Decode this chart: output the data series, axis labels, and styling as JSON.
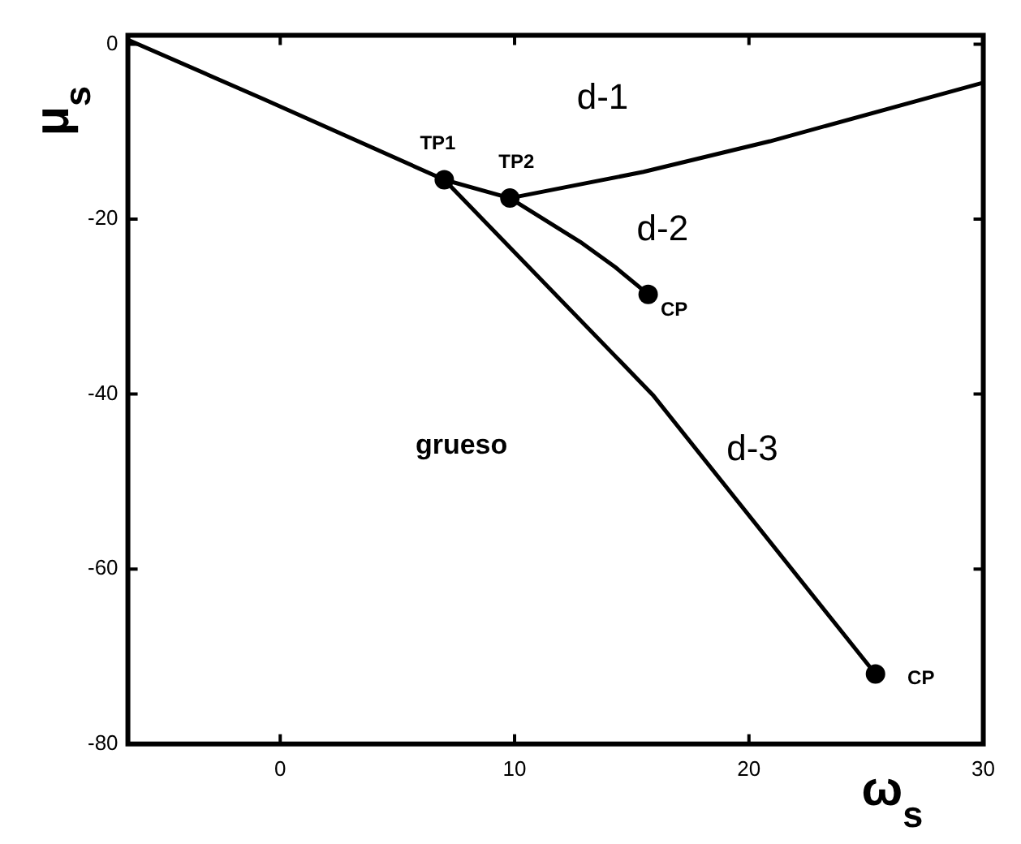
{
  "chart_data": {
    "type": "line",
    "xlabel": "ω$_{s}$",
    "ylabel": "μ$_{s}$",
    "xlim": [
      -6.5,
      30
    ],
    "ylim": [
      -80,
      1
    ],
    "xticks": [
      0,
      10,
      20,
      30
    ],
    "yticks": [
      0,
      -20,
      -40,
      -60,
      -80
    ],
    "grid": false,
    "legend": false,
    "series": [
      {
        "color": "#000000",
        "marker": "none",
        "x": [
          -6.5,
          -0.7,
          7
        ],
        "values": [
          0.5,
          -6.3,
          -15.5
        ]
      },
      {
        "color": "#000000",
        "marker": "none",
        "x": [
          7,
          9.8,
          15.5,
          20.9,
          30
        ],
        "values": [
          -15.5,
          -17.6,
          -14.6,
          -11.1,
          -4.4
        ]
      },
      {
        "color": "#000000",
        "marker": "none",
        "x": [
          9.8,
          12.8,
          14.3,
          15.7
        ],
        "values": [
          -17.6,
          -22.6,
          -25.5,
          -28.6
        ]
      },
      {
        "color": "#000000",
        "marker": "none",
        "x": [
          7,
          15.9,
          25.4
        ],
        "values": [
          -15.5,
          -40.1,
          -72
        ]
      },
      {
        "type": "scatter",
        "color": "#000000",
        "marker": "circle",
        "x": [
          7,
          9.8,
          15.7,
          25.4
        ],
        "values": [
          -15.5,
          -17.6,
          -28.6,
          -72
        ]
      }
    ],
    "annotations": [
      {
        "text": "TP1",
        "x": 7,
        "y": -15.5
      },
      {
        "text": "TP2",
        "x": 9.8,
        "y": -17.6
      },
      {
        "text": "CP",
        "x": 15.7,
        "y": -28.6
      },
      {
        "text": "CP",
        "x": 25.4,
        "y": -72
      },
      "d-1",
      "d-2",
      "d-3",
      "grueso"
    ]
  }
}
